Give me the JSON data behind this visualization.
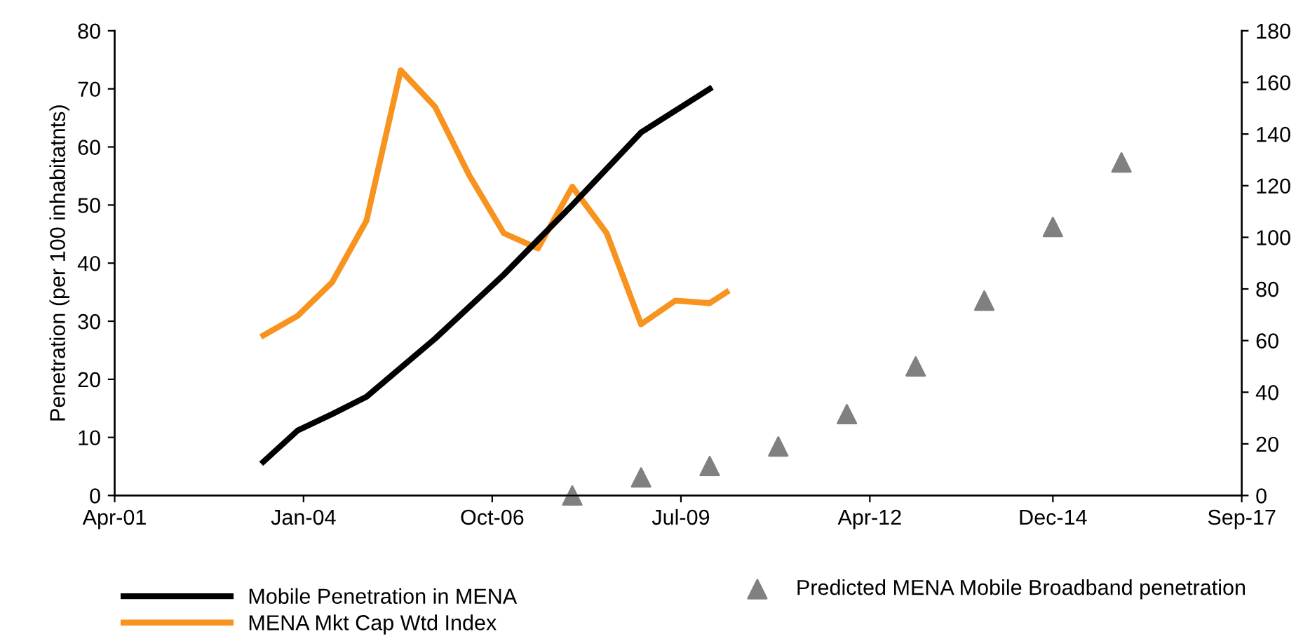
{
  "chart_data": {
    "type": "line",
    "ylabel": "Penetration (per 100 inhabitatnts)",
    "xlim": [
      "2001-04-01",
      "2017-09-01"
    ],
    "xticks": [
      {
        "value": "2001-04-01",
        "label": "Apr-01"
      },
      {
        "value": "2004-01-01",
        "label": "Jan-04"
      },
      {
        "value": "2006-10-01",
        "label": "Oct-06"
      },
      {
        "value": "2009-07-01",
        "label": "Jul-09"
      },
      {
        "value": "2012-04-01",
        "label": "Apr-12"
      },
      {
        "value": "2014-12-01",
        "label": "Dec-14"
      },
      {
        "value": "2017-09-01",
        "label": "Sep-17"
      }
    ],
    "ylim": [
      0,
      80
    ],
    "yticks": [
      0,
      10,
      20,
      30,
      40,
      50,
      60,
      70,
      80
    ],
    "y2lim": [
      0,
      180
    ],
    "y2ticks": [
      0,
      20,
      40,
      60,
      80,
      100,
      120,
      140,
      160,
      180
    ],
    "grid": false,
    "legend": "bottom",
    "series": [
      {
        "name": "Mobile Penetration in MENA",
        "color": "#000000",
        "x": [
          "2003-06",
          "2003-12",
          "2004-06",
          "2004-12",
          "2005-12",
          "2006-12",
          "2007-12",
          "2008-12",
          "2009-12"
        ],
        "values": [
          5.8,
          11.2,
          14,
          17,
          27,
          38,
          50,
          62.5,
          70
        ]
      },
      {
        "name": "MENA Mkt Cap Wtd Index",
        "color": "#f7931e",
        "axis": "y2",
        "x": [
          "2003-06",
          "2003-12",
          "2004-06",
          "2004-12",
          "2005-06",
          "2005-12",
          "2006-06",
          "2006-12",
          "2007-06",
          "2007-12",
          "2008-06",
          "2008-12",
          "2009-06",
          "2009-12",
          "2010-03"
        ],
        "values": [
          62,
          69.6,
          82.6,
          106.5,
          164.7,
          150.5,
          124,
          101.6,
          95.7,
          119.6,
          101.6,
          66.3,
          75.5,
          74.5,
          78.8
        ]
      },
      {
        "name": "Predicted MENA Mobile Broadband penetration",
        "type": "scatter",
        "marker": "triangle",
        "color": "#808080",
        "axis": "y2",
        "x": [
          "2007-12",
          "2008-12",
          "2009-12",
          "2010-12",
          "2011-12",
          "2012-12",
          "2013-12",
          "2014-12",
          "2015-12"
        ],
        "values": [
          0,
          7,
          11.4,
          19,
          31.5,
          50,
          75.5,
          104,
          129
        ]
      }
    ]
  }
}
